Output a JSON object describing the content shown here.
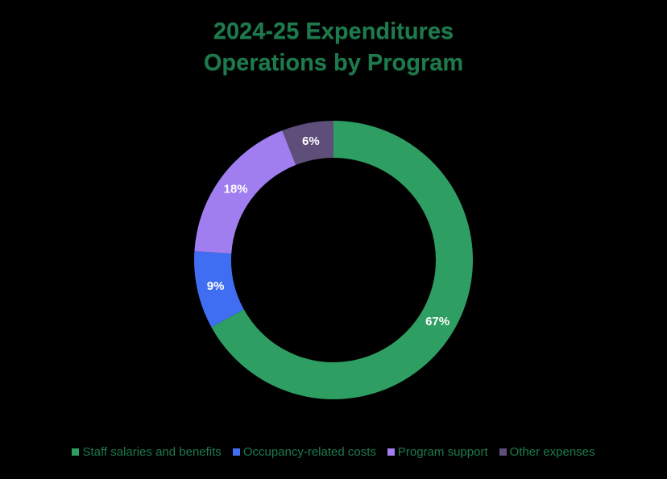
{
  "chart_data": {
    "type": "pie",
    "title": "2024-25 Expenditures",
    "subtitle": "Operations by Program",
    "slices": [
      {
        "name": "Staff salaries and benefits",
        "value": 67,
        "label": "67%",
        "color": "#2e9e62"
      },
      {
        "name": "Occupancy-related costs",
        "value": 9,
        "label": "9%",
        "color": "#3f6ef2"
      },
      {
        "name": "Program support",
        "value": 18,
        "label": "18%",
        "color": "#a07ef0"
      },
      {
        "name": "Other expenses",
        "value": 6,
        "label": "6%",
        "color": "#5e4e7a"
      }
    ],
    "legend_position": "bottom"
  }
}
